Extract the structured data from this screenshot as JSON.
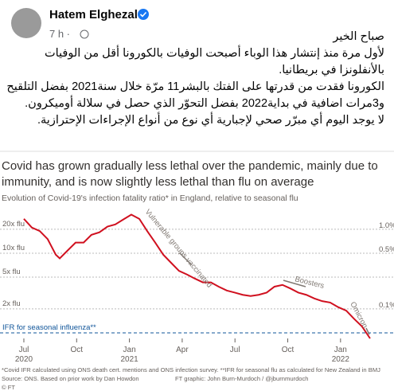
{
  "post": {
    "author": "Hatem Elghezal",
    "time": "7 h ·",
    "lines": [
      "صباح الخير",
      "لأول مرة منذ إنتشار هذا الوباء أصبحت الوفيات بالكورونا أقل من الوفيات",
      "بالأنفلونزا في بريطانيا.",
      "الكورونا فقدت من قدرتها على الفتك بالبشر11 مرّة خلال سنة2021 بفضل التلقيح",
      "و3مرات اضافية في بداية2022 بفضل التحوّر الذي حصل في سلالة أوميكرون.",
      "لا يوجد اليوم أي مبرّر صحي لإجبارية أي نوع من أنواع الإجراءات الإحترازية."
    ]
  },
  "chart_data": {
    "type": "line",
    "title": [
      "Covid has grown gradually less lethal over the pandemic, mainly due to",
      "immunity, and is now slightly less lethal than flu on average"
    ],
    "subtitle": "Evolution of Covid-19's infection fatality ratio* in England, relative to seasonal flu",
    "log_scale": true,
    "color": "#d0101f",
    "x": [
      2020.5,
      2020.538,
      2020.575,
      2020.613,
      2020.632,
      2020.651,
      2020.67,
      2020.707,
      2020.745,
      2020.783,
      2020.82,
      2020.858,
      2020.896,
      2020.933,
      2020.971,
      2021.009,
      2021.047,
      2021.084,
      2021.122,
      2021.16,
      2021.197,
      2021.235,
      2021.273,
      2021.31,
      2021.348,
      2021.386,
      2021.423,
      2021.461,
      2021.499,
      2021.537,
      2021.574,
      2021.612,
      2021.65,
      2021.687,
      2021.725,
      2021.763,
      2021.8,
      2021.838,
      2021.876,
      2021.913,
      2021.951,
      2021.989,
      2022.027,
      2022.064,
      2022.102,
      2022.14
    ],
    "values": [
      27,
      21,
      19,
      15,
      12,
      9.6,
      8.6,
      10.8,
      13.6,
      13.6,
      17,
      18.3,
      21.6,
      23,
      26.5,
      30.5,
      27,
      19,
      13.6,
      9.6,
      7.6,
      6,
      5.4,
      4.8,
      4.3,
      4.3,
      3.8,
      3.4,
      3.2,
      3,
      2.9,
      3,
      3.2,
      3.8,
      4,
      3.6,
      3.2,
      3,
      2.7,
      2.5,
      2.4,
      2.1,
      1.9,
      1.5,
      1.2,
      0.85
    ],
    "xlim": [
      2020.387,
      2022.159
    ],
    "ylim": [
      0.85,
      38
    ],
    "xticks": [
      {
        "value": 2020.5,
        "label": "Jul"
      },
      {
        "value": 2020.75,
        "label": "Oct"
      },
      {
        "value": 2021,
        "label": "Jan"
      },
      {
        "value": 2021.25,
        "label": "Apr"
      },
      {
        "value": 2021.5,
        "label": "Jul"
      },
      {
        "value": 2021.75,
        "label": "Oct"
      },
      {
        "value": 2022,
        "label": "Jan"
      }
    ],
    "xtick_years": [
      {
        "value": 2020.5,
        "label": "2020"
      },
      {
        "value": 2021,
        "label": "2021"
      },
      {
        "value": 2022,
        "label": "2022"
      }
    ],
    "yticks": [
      {
        "value": 20,
        "label": "20x flu"
      },
      {
        "value": 10,
        "label": "10x flu"
      },
      {
        "value": 5,
        "label": "5x flu"
      },
      {
        "value": 2,
        "label": "2x flu"
      },
      {
        "value": 1,
        "label": "IFR for seasonal influenza**"
      }
    ],
    "yticks_right": [
      {
        "value": 20,
        "label": "1.0%"
      },
      {
        "value": 10,
        "label": "0.5%"
      },
      {
        "value": 2,
        "label": "0.1%"
      }
    ],
    "annotations": [
      "Vulnerable groups vaccinated",
      "Boosters",
      "Omicron"
    ],
    "footnotes": [
      "*Covid IFR calculated using ONS death cert. mentions and ONS infection survey. **IFR for seasonal flu as calculated for New Zealand in BMJ",
      "Source: ONS. Based on prior work by Dan Howdon",
      "FT graphic: John Burn-Murdoch / @jburnmurdoch",
      "© FT"
    ]
  }
}
